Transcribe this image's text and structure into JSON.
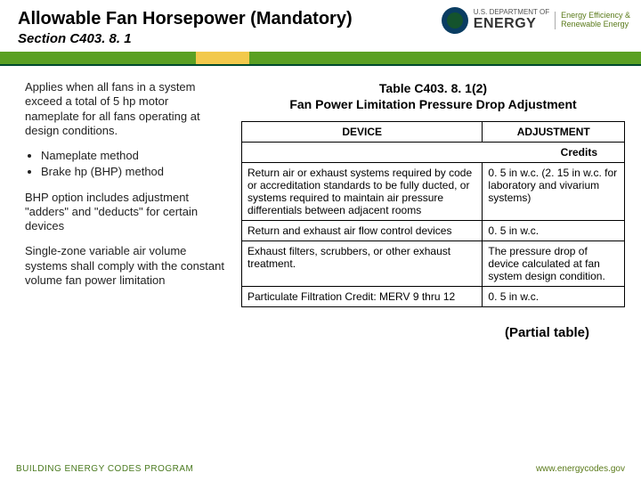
{
  "header": {
    "title": "Allowable Fan Horsepower (Mandatory)",
    "section": "Section C403. 8. 1",
    "logo": {
      "dept_line": "U.S. DEPARTMENT OF",
      "energy_word": "ENERGY",
      "eere_line1": "Energy Efficiency &",
      "eere_line2": "Renewable Energy"
    }
  },
  "left": {
    "p1": "Applies when all fans in a system exceed a total of 5 hp motor nameplate for all fans operating at design conditions.",
    "b1": "Nameplate method",
    "b2": "Brake hp (BHP) method",
    "p2": "BHP option includes adjustment \"adders\" and \"deducts\" for certain devices",
    "p3": "Single-zone variable air volume systems shall comply with the constant volume fan power limitation"
  },
  "table": {
    "caption_line1": "Table C403. 8. 1(2)",
    "caption_line2": "Fan Power Limitation Pressure Drop Adjustment",
    "header_device": "DEVICE",
    "header_adjustment": "ADJUSTMENT",
    "credits_label": "Credits",
    "rows": [
      {
        "device": "Return air or exhaust systems required by code or accreditation standards to be fully ducted, or systems required to maintain air pressure differentials between adjacent rooms",
        "adjustment": "0. 5 in w.c. (2. 15 in w.c. for laboratory and vivarium systems)"
      },
      {
        "device": "Return and exhaust air flow control devices",
        "adjustment": "0. 5 in w.c."
      },
      {
        "device": "Exhaust filters, scrubbers, or other exhaust treatment.",
        "adjustment": "The pressure drop of device calculated at fan system design condition."
      },
      {
        "device": "Particulate Filtration Credit: MERV 9 thru 12",
        "adjustment": "0. 5 in w.c."
      }
    ],
    "partial_note": "(Partial table)"
  },
  "footer": {
    "left": "BUILDING ENERGY CODES PROGRAM",
    "right": "www.energycodes.gov"
  }
}
